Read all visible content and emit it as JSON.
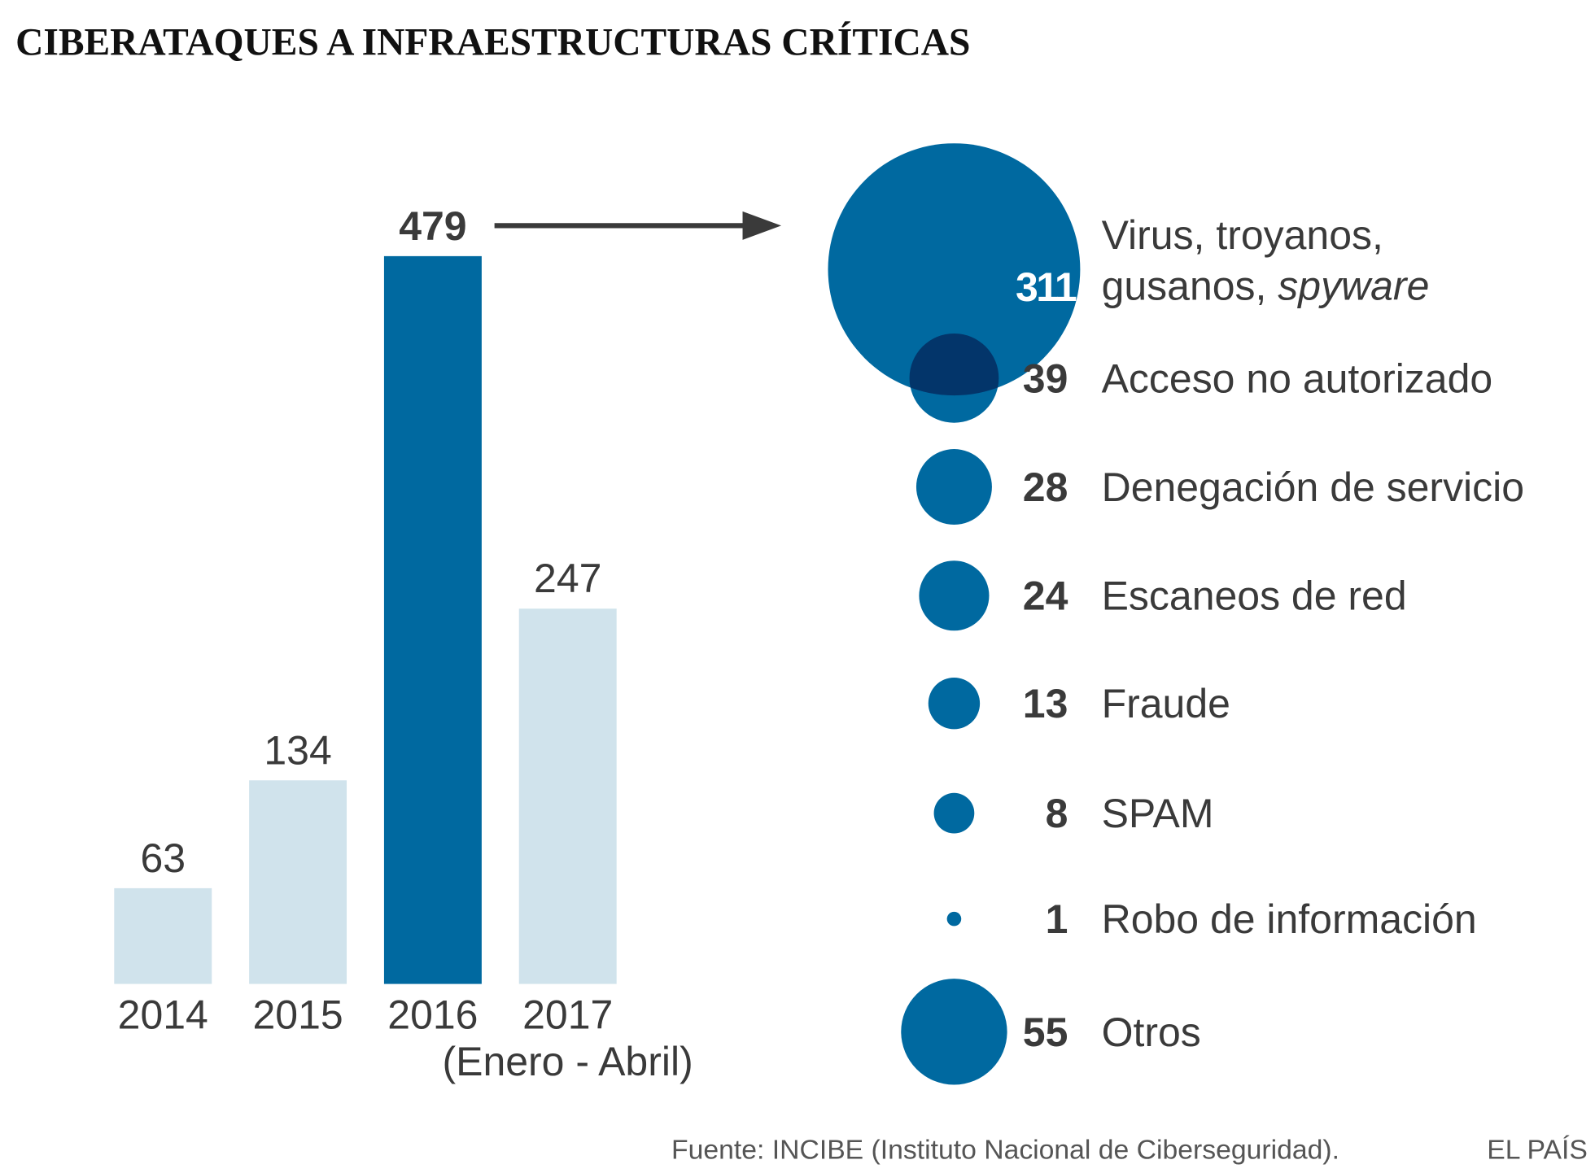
{
  "colors": {
    "highlight": "#0069a0",
    "muted": "#d0e3ec",
    "overlap": "#03356a",
    "text": "#3a3a3a"
  },
  "chart_data": [
    {
      "type": "bar",
      "title": "CIBERATAQUES A INFRAESTRUCTURAS CRÍTICAS",
      "categories": [
        "2014",
        "2015",
        "2016",
        "2017"
      ],
      "category_note": "(Enero - Abril)",
      "values": [
        63,
        134,
        479,
        247
      ],
      "highlighted": "2016",
      "xlabel": "",
      "ylabel": "",
      "ylim": [
        0,
        479
      ],
      "grid": false
    },
    {
      "type": "bubble",
      "categories": [
        {
          "label": "Virus, troyanos,",
          "label2": "gusanos, ",
          "label_italic": "spyware",
          "value": 311
        },
        {
          "label": "Acceso no autorizado",
          "value": 39
        },
        {
          "label": "Denegación de servicio",
          "value": 28
        },
        {
          "label": "Escaneos de red",
          "value": 24
        },
        {
          "label": "Fraude",
          "value": 13
        },
        {
          "label": "SPAM",
          "value": 8
        },
        {
          "label": "Robo de información",
          "value": 1
        },
        {
          "label": "Otros",
          "value": 55
        }
      ]
    }
  ],
  "footer": {
    "source": "Fuente: INCIBE (Instituto Nacional de Ciberseguridad).",
    "brand": "EL PAÍS"
  }
}
